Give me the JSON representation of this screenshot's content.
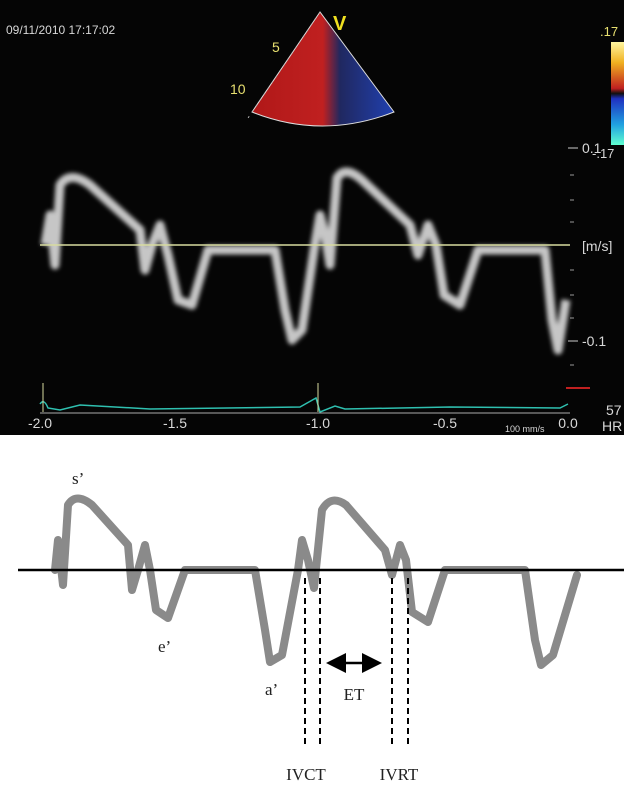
{
  "ultrasound": {
    "timestamp": "09/11/2010 17:17:02",
    "probe_marker": "V",
    "depth_labels": [
      "5",
      "10"
    ],
    "color_scale": {
      "top": ".17",
      "bottom": "-.17"
    },
    "velocity_labels": {
      "top": "0.1",
      "unit": "[m/s]",
      "bottom": "-0.1"
    },
    "heart_rate": "57",
    "heart_rate_unit": "HR",
    "time_labels": [
      "-2.0",
      "-1.5",
      "-1.0",
      "-0.5",
      "0.0"
    ],
    "sweep_speed": "100 mm/s"
  },
  "schematic": {
    "labels": {
      "s_wave": "s’",
      "e_wave": "e’",
      "a_wave": "a’",
      "ejection_time": "ET",
      "ivct": "IVCT",
      "ivrt": "IVRT"
    }
  }
}
